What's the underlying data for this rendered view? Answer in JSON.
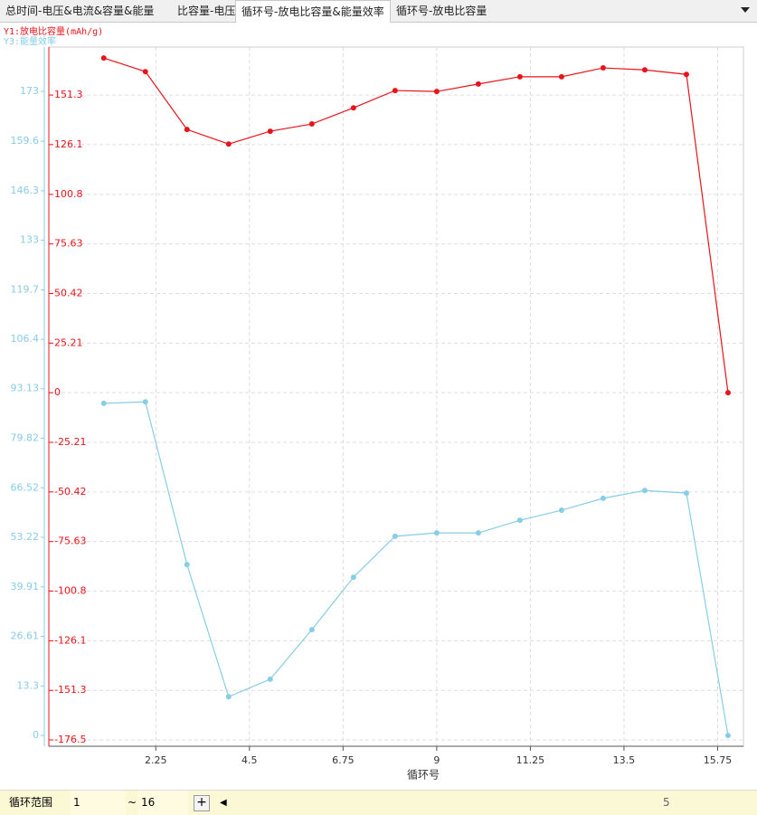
{
  "tabs": [
    "总时间-电压&电流&容量&能量",
    "比容量-电压",
    "循环号-放电比容量&能量效率",
    "循环号-放电比容量"
  ],
  "chart_data": {
    "type": "line",
    "x_label": "循环号",
    "x": [
      1,
      2,
      3,
      4,
      5,
      6,
      7,
      8,
      9,
      10,
      11,
      12,
      13,
      14,
      15,
      16
    ],
    "series": [
      {
        "name": "Y1:放电比容量(mAh/g)",
        "color": "#e8141b",
        "values": [
          170.1,
          163.2,
          133.8,
          126.4,
          132.9,
          136.6,
          144.8,
          153.6,
          153.1,
          156.9,
          160.6,
          160.6,
          165.1,
          164.1,
          161.8,
          0
        ]
      },
      {
        "name": "Y3:能量效率",
        "color": "#87cde6",
        "axis": "y2",
        "values": [
          89.2,
          89.6,
          45.9,
          10.4,
          15.1,
          28.4,
          42.5,
          53.5,
          54.4,
          54.4,
          57.8,
          60.5,
          63.7,
          65.8,
          65.1,
          0
        ]
      }
    ],
    "xlim": [
      -0.32,
      16.37
    ],
    "xticks": [
      2.25,
      4.5,
      6.75,
      9,
      11.25,
      13.5,
      15.75
    ],
    "ylim": [
      -179.7,
      175.7
    ],
    "yticks": [
      -176.5,
      -151.3,
      -126.1,
      -100.8,
      -75.63,
      -50.42,
      -25.21,
      0,
      25.21,
      50.42,
      75.63,
      100.8,
      126.1,
      151.3
    ],
    "y2lim": [
      -2.9,
      184.9
    ],
    "y2ticks": [
      0,
      13.3,
      26.61,
      39.91,
      53.22,
      66.52,
      79.82,
      93.13,
      106.4,
      119.7,
      133,
      146.3,
      159.6,
      173
    ],
    "grid": true
  },
  "controls": {
    "range_label": "循环范围",
    "range_from": "1",
    "separator": "~",
    "range_to": "16",
    "status": "5"
  }
}
